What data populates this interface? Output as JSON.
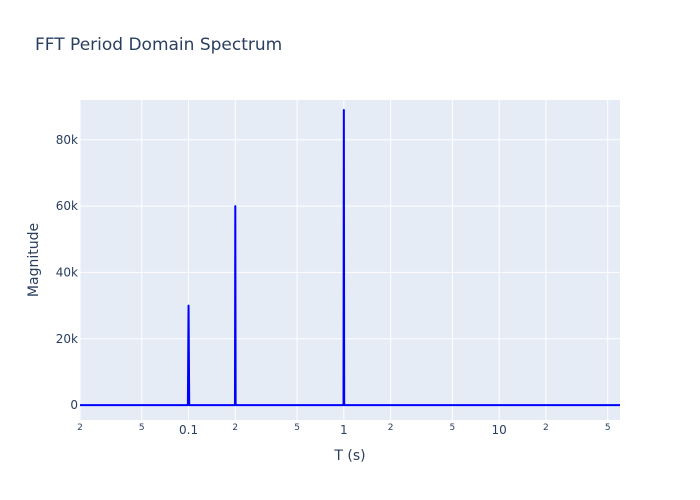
{
  "chart_data": {
    "type": "line",
    "title": "FFT Period Domain Spectrum",
    "xlabel": "T (s)",
    "ylabel": "Magnitude",
    "x_scale": "log",
    "xlim": [
      0.02,
      60
    ],
    "ylim": [
      -4500,
      92000
    ],
    "grid": true,
    "x_ticks_major": [
      {
        "value": 0.1,
        "label": "0.1"
      },
      {
        "value": 1,
        "label": "1"
      },
      {
        "value": 10,
        "label": "10"
      }
    ],
    "x_ticks_minor": [
      {
        "value": 0.02,
        "label": "2"
      },
      {
        "value": 0.05,
        "label": "5"
      },
      {
        "value": 0.2,
        "label": "2"
      },
      {
        "value": 0.5,
        "label": "5"
      },
      {
        "value": 2,
        "label": "2"
      },
      {
        "value": 5,
        "label": "5"
      },
      {
        "value": 20,
        "label": "2"
      },
      {
        "value": 50,
        "label": "5"
      }
    ],
    "y_ticks": [
      {
        "value": 0,
        "label": "0"
      },
      {
        "value": 20000,
        "label": "20k"
      },
      {
        "value": 40000,
        "label": "40k"
      },
      {
        "value": 60000,
        "label": "60k"
      },
      {
        "value": 80000,
        "label": "80k"
      }
    ],
    "series": [
      {
        "color": "#0000ff",
        "points": [
          [
            0.02,
            0
          ],
          [
            0.099,
            0
          ],
          [
            0.1,
            30000
          ],
          [
            0.101,
            0
          ],
          [
            0.199,
            0
          ],
          [
            0.2,
            60000
          ],
          [
            0.201,
            0
          ],
          [
            0.995,
            0
          ],
          [
            1.0,
            89000
          ],
          [
            1.005,
            0
          ],
          [
            1.02,
            0
          ],
          [
            60,
            0
          ]
        ]
      }
    ]
  }
}
